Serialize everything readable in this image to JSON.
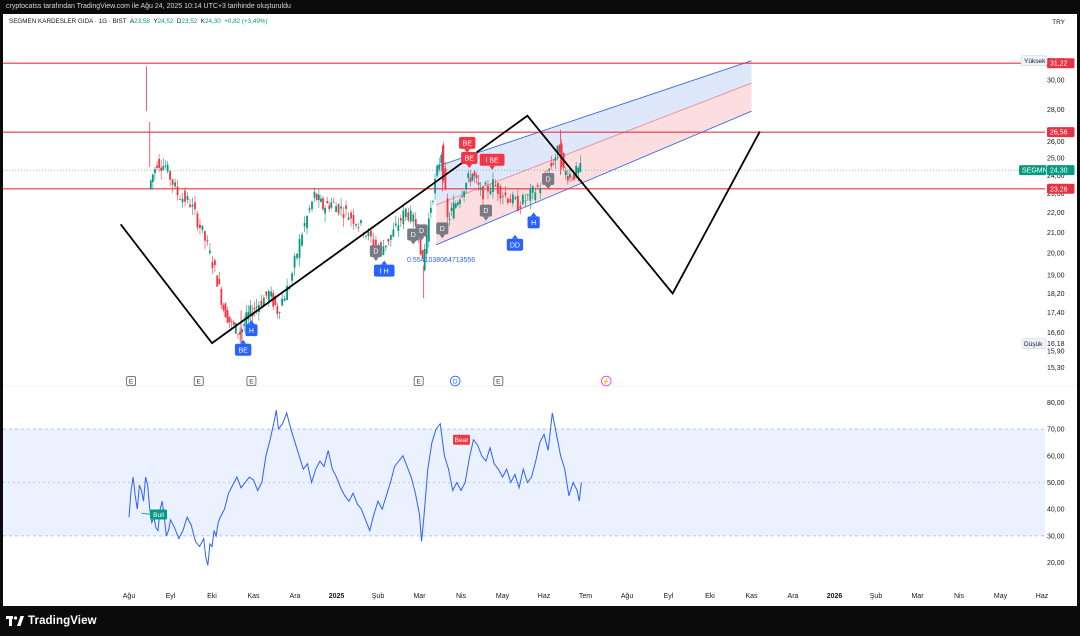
{
  "top_caption": "cryptocatss tarafından TradingView.com ile Ağu 24, 2025 10:14 UTC+3 tarihinde oluşturuldu",
  "header": {
    "symbol": "SEGMEN KARDESLER GIDA · 1G · BIST",
    "open_label": "A",
    "open": "23,58",
    "high_label": "Y",
    "high": "24,52",
    "low_label": "D",
    "low": "23,52",
    "close_label": "K",
    "close": "24,30",
    "change": "+0,82 (+3,49%)"
  },
  "currency": "TRY",
  "brand": "TradingView",
  "colors": {
    "up": "#089981",
    "down": "#f23645",
    "hline": "#e53345",
    "channel_blue": "#3b6fe0",
    "channel_red": "#f7a0a8",
    "rsi": "#2962ff"
  },
  "chart_data": [
    {
      "type": "candlestick",
      "symbol": "SEGMN",
      "x": [
        "Ağu",
        "Eyl",
        "Eki",
        "Kas",
        "Ara",
        "2025",
        "Şub",
        "Mar",
        "Nis",
        "May",
        "Haz",
        "Tem",
        "Ağu",
        "Eyl",
        "Eki",
        "Kas",
        "Ara",
        "2026",
        "Şub",
        "Mar",
        "Nis",
        "May",
        "Haz"
      ],
      "y_ticks": [
        "31,40",
        "30,00",
        "28,00",
        "26,00",
        "25,00",
        "24,00",
        "23,00",
        "22,00",
        "21,00",
        "20,00",
        "19,00",
        "18,20",
        "17,40",
        "16,60",
        "15,90",
        "15,30"
      ],
      "y_range": [
        15.0,
        32.2
      ],
      "log_scale": true,
      "price_path": [
        [
          0.5,
          23.3
        ],
        [
          0.7,
          24.8
        ],
        [
          0.9,
          24.5
        ],
        [
          1.2,
          23.0
        ],
        [
          1.5,
          22.5
        ],
        [
          1.8,
          21.0
        ],
        [
          2.1,
          19.2
        ],
        [
          2.3,
          17.6
        ],
        [
          2.5,
          16.9
        ],
        [
          2.7,
          16.6
        ],
        [
          2.9,
          17.3
        ],
        [
          3.1,
          17.7
        ],
        [
          3.4,
          18.2
        ],
        [
          3.6,
          17.5
        ],
        [
          3.9,
          18.6
        ],
        [
          4.2,
          21.0
        ],
        [
          4.5,
          22.9
        ],
        [
          4.7,
          22.3
        ],
        [
          4.9,
          22.5
        ],
        [
          5.2,
          22.1
        ],
        [
          5.5,
          21.6
        ],
        [
          5.8,
          20.8
        ],
        [
          6.1,
          20.2
        ],
        [
          6.4,
          21.0
        ],
        [
          6.7,
          22.1
        ],
        [
          7.0,
          21.2
        ],
        [
          7.1,
          19.4
        ],
        [
          7.3,
          22.4
        ],
        [
          7.55,
          25.4
        ],
        [
          7.7,
          21.6
        ],
        [
          7.9,
          22.5
        ],
        [
          8.1,
          23.4
        ],
        [
          8.3,
          24.1
        ],
        [
          8.5,
          23.0
        ],
        [
          8.8,
          23.5
        ],
        [
          9.1,
          22.9
        ],
        [
          9.4,
          22.4
        ],
        [
          9.7,
          22.9
        ],
        [
          10.0,
          23.6
        ],
        [
          10.2,
          24.6
        ],
        [
          10.4,
          25.6
        ],
        [
          10.5,
          24.2
        ],
        [
          10.7,
          24.0
        ],
        [
          10.9,
          24.3
        ]
      ],
      "highs": [
        [
          0.42,
          31.0
        ],
        [
          0.5,
          27.2
        ],
        [
          10.4,
          26.7
        ],
        [
          7.55,
          25.7
        ]
      ],
      "lows": [
        [
          2.7,
          16.2
        ],
        [
          7.1,
          18.0
        ]
      ],
      "horizontal_lines": [
        {
          "price": 31.22,
          "label": "31,22"
        },
        {
          "price": 26.56,
          "label": "26,56"
        },
        {
          "price": 23.26,
          "label": "23,26"
        }
      ],
      "price_tags": [
        {
          "name": "SEGMN",
          "price": 24.3,
          "label": "24,30"
        },
        {
          "name": "Yüksek",
          "price": 31.4
        },
        {
          "name": "Düşük",
          "price": 16.18,
          "label": "16,18"
        }
      ],
      "zigzag": [
        [
          -0.2,
          21.4
        ],
        [
          2.0,
          16.2
        ],
        [
          9.6,
          27.6
        ],
        [
          13.1,
          18.2
        ],
        [
          15.2,
          26.6
        ]
      ],
      "channel": {
        "upper": [
          [
            7.4,
            24.5
          ],
          [
            15.0,
            31.4
          ]
        ],
        "middle": [
          [
            7.4,
            22.4
          ],
          [
            15.0,
            29.8
          ]
        ],
        "lower": [
          [
            7.4,
            20.4
          ],
          [
            15.0,
            27.9
          ]
        ]
      },
      "signals": [
        {
          "label": "BE",
          "x": 2.75,
          "price": 15.95,
          "dir": "up"
        },
        {
          "label": "H",
          "x": 2.95,
          "price": 16.7,
          "dir": "up"
        },
        {
          "label": "D",
          "x": 5.95,
          "price": 20.1,
          "dir": "down"
        },
        {
          "label": "I H",
          "x": 6.15,
          "price": 19.2,
          "dir": "up"
        },
        {
          "label": "D",
          "x": 6.85,
          "price": 20.9,
          "dir": "down"
        },
        {
          "label": "D",
          "x": 7.05,
          "price": 21.1,
          "dir": "down"
        },
        {
          "label": "D",
          "x": 7.55,
          "price": 21.2,
          "dir": "down"
        },
        {
          "label": "BE",
          "x": 8.15,
          "price": 25.9,
          "dir": "down"
        },
        {
          "label": "BE",
          "x": 8.2,
          "price": 25.0,
          "dir": "down"
        },
        {
          "label": "I BE",
          "x": 8.75,
          "price": 24.9,
          "dir": "down"
        },
        {
          "label": "D",
          "x": 8.6,
          "price": 22.1,
          "dir": "down"
        },
        {
          "label": "DD",
          "x": 9.3,
          "price": 20.4,
          "dir": "up"
        },
        {
          "label": "H",
          "x": 9.75,
          "price": 21.5,
          "dir": "up"
        },
        {
          "label": "D",
          "x": 10.1,
          "price": 23.8,
          "dir": "down"
        }
      ],
      "annotation": {
        "text": "0.5541038064713556",
        "x": 6.7,
        "price": 19.6
      },
      "events": [
        {
          "label": "E",
          "x": 0.05
        },
        {
          "label": "E",
          "x": 1.68
        },
        {
          "label": "E",
          "x": 2.95
        },
        {
          "label": "E",
          "x": 6.98
        },
        {
          "label": "D",
          "x": 7.86
        },
        {
          "label": "E",
          "x": 8.9
        },
        {
          "label": "⚡",
          "x": 11.5
        }
      ]
    },
    {
      "type": "line",
      "name": "RSI",
      "y_ticks": [
        "80,00",
        "70,00",
        "60,00",
        "50,00",
        "40,00",
        "30,00",
        "20,00"
      ],
      "y_range": [
        15,
        82
      ],
      "band": [
        30,
        70
      ],
      "midline": 50,
      "values": [
        [
          0,
          37
        ],
        [
          0.05,
          47
        ],
        [
          0.1,
          52
        ],
        [
          0.15,
          45
        ],
        [
          0.2,
          40
        ],
        [
          0.25,
          49
        ],
        [
          0.3,
          47
        ],
        [
          0.35,
          43
        ],
        [
          0.4,
          52
        ],
        [
          0.45,
          49
        ],
        [
          0.5,
          40
        ],
        [
          0.55,
          35
        ],
        [
          0.6,
          37
        ],
        [
          0.65,
          33
        ],
        [
          0.7,
          32
        ],
        [
          0.75,
          40
        ],
        [
          0.8,
          43
        ],
        [
          0.85,
          37
        ],
        [
          0.9,
          30
        ],
        [
          0.95,
          32
        ],
        [
          1.0,
          36
        ],
        [
          1.1,
          33
        ],
        [
          1.2,
          29
        ],
        [
          1.3,
          32
        ],
        [
          1.4,
          37
        ],
        [
          1.5,
          34
        ],
        [
          1.6,
          28
        ],
        [
          1.7,
          26
        ],
        [
          1.8,
          29
        ],
        [
          1.85,
          22
        ],
        [
          1.9,
          19
        ],
        [
          1.95,
          27
        ],
        [
          2.0,
          26
        ],
        [
          2.05,
          32
        ],
        [
          2.1,
          30
        ],
        [
          2.15,
          35
        ],
        [
          2.2,
          37
        ],
        [
          2.3,
          40
        ],
        [
          2.4,
          46
        ],
        [
          2.5,
          49
        ],
        [
          2.6,
          52
        ],
        [
          2.7,
          48
        ],
        [
          2.8,
          50
        ],
        [
          2.9,
          52
        ],
        [
          3.0,
          51
        ],
        [
          3.1,
          47
        ],
        [
          3.2,
          50
        ],
        [
          3.3,
          60
        ],
        [
          3.4,
          66
        ],
        [
          3.5,
          73
        ],
        [
          3.55,
          77
        ],
        [
          3.6,
          70
        ],
        [
          3.7,
          72
        ],
        [
          3.8,
          76
        ],
        [
          3.9,
          70
        ],
        [
          4.0,
          65
        ],
        [
          4.1,
          60
        ],
        [
          4.2,
          55
        ],
        [
          4.3,
          57
        ],
        [
          4.4,
          50
        ],
        [
          4.5,
          55
        ],
        [
          4.6,
          58
        ],
        [
          4.7,
          56
        ],
        [
          4.8,
          62
        ],
        [
          4.9,
          55
        ],
        [
          5.0,
          52
        ],
        [
          5.1,
          48
        ],
        [
          5.2,
          45
        ],
        [
          5.3,
          43
        ],
        [
          5.4,
          46
        ],
        [
          5.5,
          42
        ],
        [
          5.6,
          40
        ],
        [
          5.7,
          36
        ],
        [
          5.8,
          32
        ],
        [
          5.9,
          38
        ],
        [
          6.0,
          43
        ],
        [
          6.1,
          40
        ],
        [
          6.2,
          45
        ],
        [
          6.3,
          50
        ],
        [
          6.4,
          56
        ],
        [
          6.5,
          58
        ],
        [
          6.6,
          60
        ],
        [
          6.7,
          56
        ],
        [
          6.8,
          52
        ],
        [
          6.9,
          46
        ],
        [
          7.0,
          38
        ],
        [
          7.05,
          28
        ],
        [
          7.1,
          36
        ],
        [
          7.2,
          55
        ],
        [
          7.3,
          65
        ],
        [
          7.4,
          70
        ],
        [
          7.5,
          72
        ],
        [
          7.6,
          60
        ],
        [
          7.7,
          55
        ],
        [
          7.8,
          47
        ],
        [
          7.9,
          50
        ],
        [
          8.0,
          47
        ],
        [
          8.1,
          50
        ],
        [
          8.2,
          59
        ],
        [
          8.3,
          66
        ],
        [
          8.4,
          64
        ],
        [
          8.5,
          60
        ],
        [
          8.6,
          58
        ],
        [
          8.7,
          63
        ],
        [
          8.8,
          57
        ],
        [
          8.9,
          55
        ],
        [
          9.0,
          52
        ],
        [
          9.1,
          55
        ],
        [
          9.2,
          50
        ],
        [
          9.3,
          53
        ],
        [
          9.4,
          48
        ],
        [
          9.5,
          55
        ],
        [
          9.6,
          50
        ],
        [
          9.7,
          52
        ],
        [
          9.8,
          58
        ],
        [
          9.9,
          65
        ],
        [
          10.0,
          68
        ],
        [
          10.1,
          62
        ],
        [
          10.2,
          76
        ],
        [
          10.3,
          68
        ],
        [
          10.4,
          60
        ],
        [
          10.5,
          55
        ],
        [
          10.6,
          45
        ],
        [
          10.7,
          50
        ],
        [
          10.8,
          47
        ],
        [
          10.85,
          43
        ],
        [
          10.9,
          50
        ]
      ],
      "signals": [
        {
          "label": "Bull",
          "x": 0.7,
          "value": 38
        },
        {
          "label": "Bear",
          "x": 8.0,
          "value": 66
        }
      ]
    }
  ]
}
